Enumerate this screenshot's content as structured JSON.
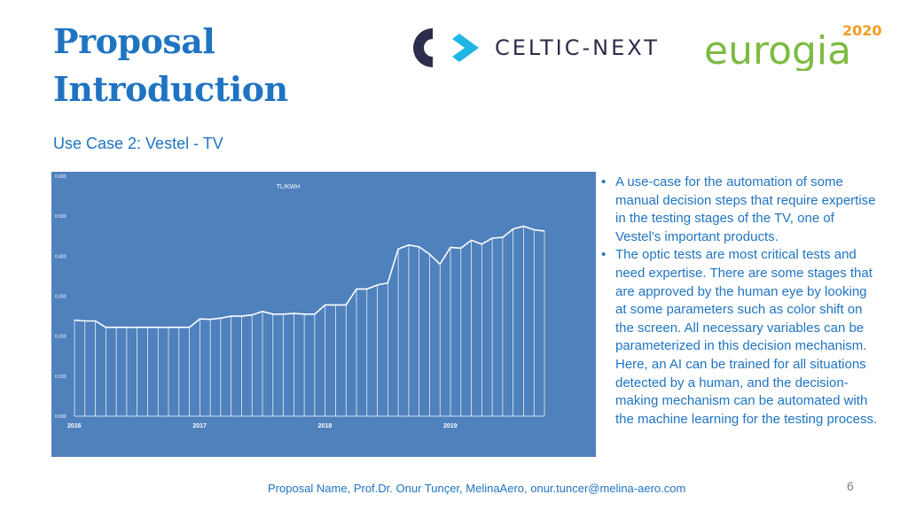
{
  "slide": {
    "title": "Proposal Introduction",
    "subtitle": "Use Case 2: Vestel - TV",
    "footer": "Proposal Name,  Prof.Dr. Onur Tunçer, MelinaAero, onur.tuncer@melina-aero.com",
    "page_number": "6"
  },
  "logos": {
    "celtic_text": "CELTIC-NEXT",
    "eurogia_text": "eurogia",
    "eurogia_year": "2020"
  },
  "bullets": [
    "A use-case for the automation of some manual decision steps that require expertise in the testing stages of the TV, one of Vestel's important products.",
    "The optic tests are most critical tests and need expertise. There are some stages that are approved by the human eye by looking at some parameters such as color shift on the screen. All necessary variables can be parameterized in this decision mechanism. Here, an AI can be trained for all situations detected by a human, and the decision-making mechanism can be automated with the machine learning for the testing process."
  ],
  "chart_data": {
    "type": "line",
    "title": "TL/KWH",
    "xlabel": "",
    "ylabel": "",
    "ylim": [
      0,
      0.6
    ],
    "yticks": [
      "0.000",
      "0.100",
      "0.200",
      "0.300",
      "0.400",
      "0.500",
      "0.600"
    ],
    "xticks": [
      {
        "label": "2016",
        "x": 0
      },
      {
        "label": "2017",
        "x": 12
      },
      {
        "label": "2018",
        "x": 24
      },
      {
        "label": "2019",
        "x": 36
      }
    ],
    "grid": false,
    "series": [
      {
        "values": [
          0.24,
          0.238,
          0.238,
          0.222,
          0.222,
          0.222,
          0.222,
          0.222,
          0.222,
          0.222,
          0.222,
          0.222,
          0.243,
          0.242,
          0.245,
          0.25,
          0.25,
          0.253,
          0.262,
          0.255,
          0.255,
          0.257,
          0.255,
          0.255,
          0.278,
          0.278,
          0.278,
          0.318,
          0.318,
          0.328,
          0.333,
          0.418,
          0.428,
          0.423,
          0.405,
          0.38,
          0.422,
          0.42,
          0.44,
          0.43,
          0.445,
          0.447,
          0.468,
          0.475,
          0.466,
          0.463
        ]
      }
    ],
    "colors": {
      "panel": "#4f81bd",
      "line": "#ffffff",
      "text": "#ffffff"
    }
  }
}
